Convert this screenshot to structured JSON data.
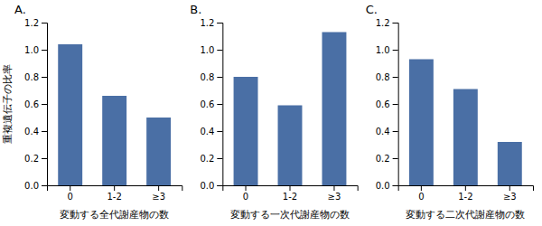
{
  "chart_data": [
    {
      "type": "bar",
      "title": "A.",
      "xlabel": "変動する全代謝産物の数",
      "ylabel": "重複遺伝子の比率",
      "categories": [
        "0",
        "1-2",
        "≥3"
      ],
      "values": [
        1.04,
        0.66,
        0.5
      ],
      "color": "#4a6fa5",
      "ylim": [
        0,
        1.2
      ],
      "yticks": [
        {
          "value": 0,
          "label": "0.0"
        },
        0.2,
        0.4,
        0.6,
        0.8,
        {
          "value": 1,
          "label": "1.0"
        },
        1.2
      ]
    },
    {
      "type": "bar",
      "title": "B.",
      "xlabel": "変動する一次代謝産物の数",
      "categories": [
        "0",
        "1-2",
        "≥3"
      ],
      "values": [
        0.8,
        0.59,
        1.13
      ],
      "color": "#4a6fa5",
      "ylim": [
        0,
        1.2
      ],
      "yticks": [
        {
          "value": 0,
          "label": "0.0"
        },
        0.2,
        0.4,
        0.6,
        0.8,
        {
          "value": 1,
          "label": "1.0"
        },
        1.2
      ]
    },
    {
      "type": "bar",
      "title": "C.",
      "xlabel": "変動する二次代謝産物の数",
      "categories": [
        "0",
        "1-2",
        "≥3"
      ],
      "values": [
        0.93,
        0.71,
        0.32
      ],
      "color": "#4a6fa5",
      "ylim": [
        0,
        1.2
      ],
      "yticks": [
        {
          "value": 0,
          "label": "0.0"
        },
        0.2,
        0.4,
        0.6,
        0.8,
        {
          "value": 1,
          "label": "1.0"
        },
        1.2
      ]
    }
  ]
}
